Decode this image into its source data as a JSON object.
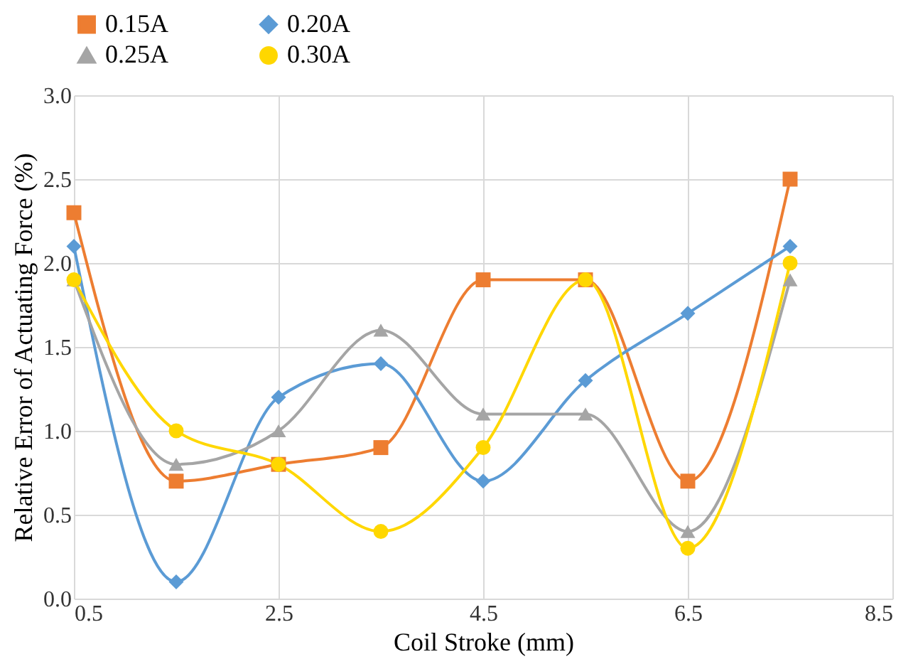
{
  "chart_data": {
    "type": "line",
    "xlabel": "Coil Stroke (mm)",
    "ylabel": "Relative Error of Actuating Force  (%)",
    "x": [
      0.5,
      1.5,
      2.5,
      3.5,
      4.5,
      5.5,
      6.5,
      7.5
    ],
    "series": [
      {
        "name": "0.15A",
        "color": "#ed7d31",
        "marker": "square",
        "values": [
          2.3,
          0.7,
          0.8,
          0.9,
          1.9,
          1.9,
          0.7,
          2.5
        ]
      },
      {
        "name": "0.20A",
        "color": "#5b9bd5",
        "marker": "diamond",
        "values": [
          2.1,
          0.1,
          1.2,
          1.4,
          0.7,
          1.3,
          1.7,
          2.1
        ]
      },
      {
        "name": "0.25A",
        "color": "#a5a5a5",
        "marker": "triangle",
        "values": [
          1.9,
          0.8,
          1.0,
          1.6,
          1.1,
          1.1,
          0.4,
          1.9
        ]
      },
      {
        "name": "0.30A",
        "color": "#ffd700",
        "marker": "circle",
        "values": [
          1.9,
          1.0,
          0.8,
          0.4,
          0.9,
          1.9,
          0.3,
          2.0
        ]
      }
    ],
    "xlim": [
      0.5,
      8.5
    ],
    "xticks": [
      0.5,
      2.5,
      4.5,
      6.5,
      8.5
    ],
    "ylim": [
      0,
      3
    ],
    "yticks": [
      {
        "value": 0,
        "label": "0.0"
      },
      {
        "value": 0.5,
        "label": "0.5"
      },
      {
        "value": 1,
        "label": "1.0"
      },
      {
        "value": 1.5,
        "label": "1.5"
      },
      {
        "value": 2,
        "label": "2.0"
      },
      {
        "value": 2.5,
        "label": "2.5"
      },
      {
        "value": 3,
        "label": "3.0"
      }
    ],
    "grid": true,
    "legend": "top",
    "line_style": "solid"
  }
}
